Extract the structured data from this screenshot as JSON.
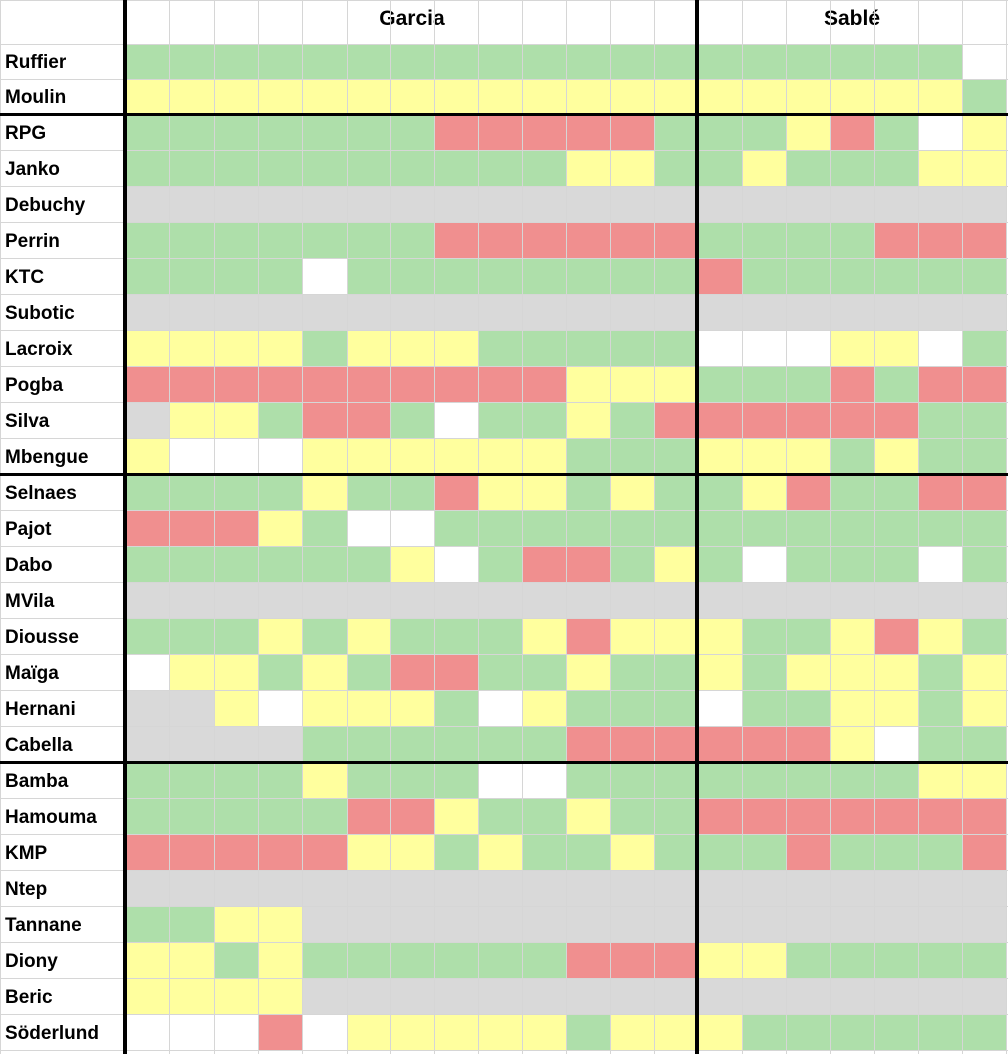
{
  "headers": {
    "group1": "Garcia",
    "group2": "Sablé"
  },
  "colors": {
    "G": "#aedfaa",
    "Y": "#ffff9e",
    "R": "#f08f8f",
    "X": "#d9d9d9",
    "W": "#ffffff"
  },
  "players": [
    "Ruffier",
    "Moulin",
    "RPG",
    "Janko",
    "Debuchy",
    "Perrin",
    "KTC",
    "Subotic",
    "Lacroix",
    "Pogba",
    "Silva",
    "Mbengue",
    "Selnaes",
    "Pajot",
    "Dabo",
    "MVila",
    "Diousse",
    "Maïga",
    "Hernani",
    "Cabella",
    "Bamba",
    "Hamouma",
    "KMP",
    "Ntep",
    "Tannane",
    "Diony",
    "Beric",
    "Söderlund"
  ],
  "garcia": [
    "GGGGGGGGGGGGG",
    "YYYYYYYYYYYYY",
    "GGGGGGGRRRRRG",
    "GGGGGGGGGGYYG",
    "XXXXXXXXXXXXX",
    "GGGGGGGRRRRRR",
    "GGGGWGGGGGGGG",
    "XXXXXXXXXXXXX",
    "YYYYGYYYGGGGG",
    "RRRRRRRRRRYYY",
    "XYYGRRGWGGYGR",
    "YWWWYYYYYYGGG",
    "GGGGYGGRYYGYG",
    "RRRYGWWGGGGGG",
    "GGGGGGYWGRRGY",
    "XXXXXXXXXXXXX",
    "GGGYGYGGGYRYY",
    "WYYGYGRRGGYGG",
    "XXYWYYYGWYGGG",
    "XXXXGGGGGGRRR",
    "GGGGYGGGWWGGG",
    "GGGGGRRYGGYGG",
    "RRRRRYYGYGGYG",
    "XXXXXXXXXXXXX",
    "GGYYXXXXXXXXX",
    "YYGYGGGGGGRRR",
    "YYYYXXXXXXXXX",
    "WWWRWYYYYYGYY"
  ],
  "sable": [
    "GGGGGGW",
    "YYYYYYG",
    "GGYRGWY",
    "GYGGGYY",
    "XXXXXXX",
    "GGGGRRR",
    "RGGGGGG",
    "XXXXXXX",
    "WWWYYWG",
    "GGGRGRR",
    "RRRRRGG",
    "YYYGYGG",
    "GYRGGRR",
    "GGGGGGG",
    "GWGGGWG",
    "XXXXXXX",
    "YGGYRYG",
    "YGYYYGY",
    "WGGYYGY",
    "RRRYWGG",
    "GGGGGYY",
    "RRRRRRR",
    "GGRGGGR",
    "XXXXXXX",
    "XXXXXXX",
    "YYGGGGG",
    "XXXXXXX",
    "YGGGGGG"
  ]
}
